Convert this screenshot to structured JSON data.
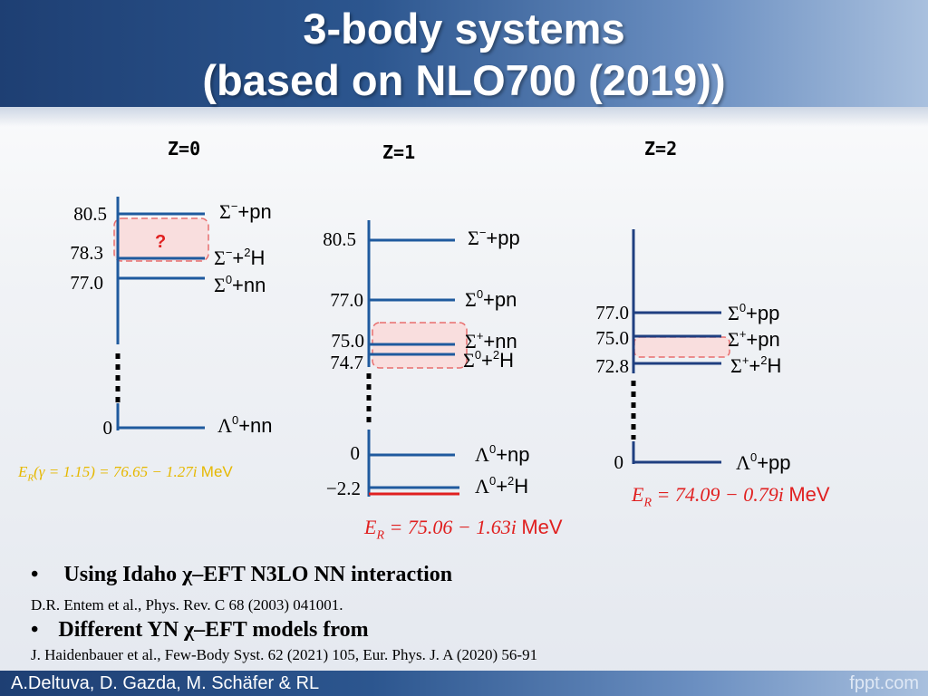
{
  "title": {
    "line1": "3-body systems",
    "line2": "(based on NLO700 (2019))"
  },
  "panels": {
    "z0": {
      "label": "Z=0",
      "levels": [
        {
          "value": "80.5",
          "state_sym": "Σ",
          "state_sup": "−",
          "state_rest": "+pn"
        },
        {
          "value": "78.3",
          "state_sym": "Σ",
          "state_sup": "−",
          "state_rest": "+",
          "state_sup2": "2",
          "state_tail": "H"
        },
        {
          "value": "77.0",
          "state_sym": "Σ",
          "state_sup": "0",
          "state_rest": "+nn"
        },
        {
          "value": "0",
          "state_sym": "Λ",
          "state_sup": "0",
          "state_rest": "+nn"
        }
      ],
      "unknown_marker": "?",
      "resonance_prefix": "E",
      "resonance_sub": "R",
      "resonance_expr": "(γ = 1.15) = 76.65 − 1.27i",
      "resonance_unit": "MeV",
      "resonance_color": "#e6b800"
    },
    "z1": {
      "label": "Z=1",
      "levels": [
        {
          "value": "80.5",
          "state_sym": "Σ",
          "state_sup": "−",
          "state_rest": "+pp"
        },
        {
          "value": "77.0",
          "state_sym": "Σ",
          "state_sup": "0",
          "state_rest": "+pn"
        },
        {
          "value": "75.0",
          "state_sym": "Σ",
          "state_sup": "+",
          "state_rest": "+nn"
        },
        {
          "value": "74.7",
          "state_sym": "Σ",
          "state_sup": "0",
          "state_rest": "+",
          "state_sup2": "2",
          "state_tail": "H"
        },
        {
          "value": "0",
          "state_sym": "Λ",
          "state_sup": "0",
          "state_rest": "+np"
        },
        {
          "value": "−2.2",
          "state_sym": "Λ",
          "state_sup": "0",
          "state_rest": "+",
          "state_sup2": "2",
          "state_tail": "H"
        }
      ],
      "resonance_prefix": "E",
      "resonance_sub": "R",
      "resonance_expr": "= 75.06 − 1.63i",
      "resonance_unit": "MeV",
      "resonance_color": "#e02020"
    },
    "z2": {
      "label": "Z=2",
      "levels": [
        {
          "value": "77.0",
          "state_sym": "Σ",
          "state_sup": "0",
          "state_rest": "+pp"
        },
        {
          "value": "75.0",
          "state_sym": "Σ",
          "state_sup": "+",
          "state_rest": "+pn"
        },
        {
          "value": "72.8",
          "state_sym": "Σ",
          "state_sup": "+",
          "state_rest": "+",
          "state_sup2": "2",
          "state_tail": "H"
        },
        {
          "value": "0",
          "state_sym": "Λ",
          "state_sup": "0",
          "state_rest": "+pp"
        }
      ],
      "resonance_prefix": "E",
      "resonance_sub": "R",
      "resonance_expr": "= 74.09 − 0.79i",
      "resonance_unit": "MeV",
      "resonance_color": "#e02020"
    }
  },
  "bullets": [
    {
      "marker": "•",
      "text": "Using Idaho χ–EFT N3LO NN interaction",
      "ref": "D.R. Entem et al., Phys. Rev. C 68 (2003) 041001."
    },
    {
      "marker": "•",
      "text": "Different YN χ–EFT models from",
      "ref": "J. Haidenbauer et al., Few-Body Syst. 62 (2021) 105, Eur. Phys. J. A (2020) 56-91"
    }
  ],
  "footer": {
    "authors": "A.Deltuva, D. Gazda, M. Schäfer & RL",
    "brand": "fppt.com"
  },
  "colors": {
    "level_line": "#1f5a9e",
    "bound_line": "#e02020",
    "axis_line": "#1f3f80",
    "highlight_fill": "#f9dede",
    "highlight_border": "#e86f6f",
    "unknown_marker": "#e02020"
  }
}
